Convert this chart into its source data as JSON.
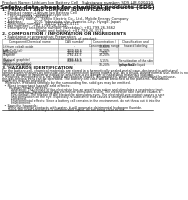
{
  "title": "Safety data sheet for chemical products (SDS)",
  "header_left": "Product Name: Lithium Ion Battery Cell",
  "header_right_line1": "Substance number: SDS-LIB-000010",
  "header_right_line2": "Established / Revision: Dec.1,2019",
  "section1_title": "1. PRODUCT AND COMPANY IDENTIFICATION",
  "section1_lines": [
    "  • Product name: Lithium Ion Battery Cell",
    "  • Product code: Cylindrical-type cell",
    "       (e.g. 18650A, 26650A)",
    "  • Company name:    Sanyo Electric Co., Ltd., Mobile Energy Company",
    "  • Address:          2001 Yamashita-cho, Sumoto-City, Hyogo, Japan",
    "  • Telephone number:   +81-(799)-26-4111",
    "  • Fax number:   +81-1799-26-4129",
    "  • Emergency telephone number (Weekday): +81-799-26-3662",
    "                              (Night and holiday): +81-799-26-3131"
  ],
  "section2_title": "2. COMPOSITION / INFORMATION ON INGREDIENTS",
  "section2_intro": "  • Substance or preparation: Preparation",
  "section2_sub": "  • Information about the chemical nature of product:",
  "table_col_headers1": [
    "Component/Chemical name",
    "CAS number",
    "Concentration /\nConcentration range",
    "Classification and\nhazard labeling"
  ],
  "table_rows": [
    [
      "Lithium cobalt oxide\n(LiMnCoO₂(x))",
      "-",
      "30-60%",
      ""
    ],
    [
      "Iron",
      "7439-89-6",
      "10-20%",
      ""
    ],
    [
      "Aluminum",
      "7429-90-5",
      "2-6%",
      ""
    ],
    [
      "Graphite\n(Natural graphite)\n(Artificial graphite)",
      "7782-42-5\n7782-42-5",
      "10-20%",
      ""
    ],
    [
      "Copper",
      "7440-50-8",
      "5-15%",
      "Sensitization of the skin\ngroup No.2"
    ],
    [
      "Organic electrolyte",
      "-",
      "10-20%",
      "Inflammable liquid"
    ]
  ],
  "section3_title": "3. HAZARDS IDENTIFICATION",
  "section3_para": [
    "For the battery cell, chemical materials are stored in a hermetically sealed metal case, designed to withstand",
    "temperatures changes by pressure-volume connection during normal use. As a result, during normal use, there is no",
    "physical danger of ignition or explosion and there is no danger of hazardous materials leakage.",
    "   However, if exposed to a fire, added mechanical shocks, decomposed, when electro-stimulated by misuse,",
    "the gas release vent can be operated. The battery cell case will be breached at fire patterns. Hazardous",
    "materials may be released.",
    "   Moreover, if heated strongly by the surrounding fire, solid gas may be emitted."
  ],
  "section3_bullet1": "  • Most important hazard and effects:",
  "section3_human": "      Human health effects:",
  "section3_human_lines": [
    "         Inhalation: The release of the electrolyte has an anesthesia action and stimulates a respiratory tract.",
    "         Skin contact: The release of the electrolyte stimulates a skin. The electrolyte skin contact causes a",
    "         sore and stimulation on the skin.",
    "         Eye contact: The release of the electrolyte stimulates eyes. The electrolyte eye contact causes a sore",
    "         and stimulation on the eye. Especially, a substance that causes a strong inflammation of the eye is",
    "         contained.",
    "         Environmental effects: Since a battery cell remains in the environment, do not throw out it into the",
    "         environment."
  ],
  "section3_specific": "  • Specific hazards:",
  "section3_specific_lines": [
    "      If the electrolyte contacts with water, it will generate detrimental hydrogen fluoride.",
    "      Since the used electrolyte is inflammable liquid, do not bring close to fire."
  ],
  "bg_color": "#ffffff",
  "text_color": "#1a1a1a",
  "line_color": "#000000",
  "table_line_color": "#999999",
  "title_fs": 4.2,
  "header_fs": 2.8,
  "section_fs": 3.2,
  "body_fs": 2.5
}
